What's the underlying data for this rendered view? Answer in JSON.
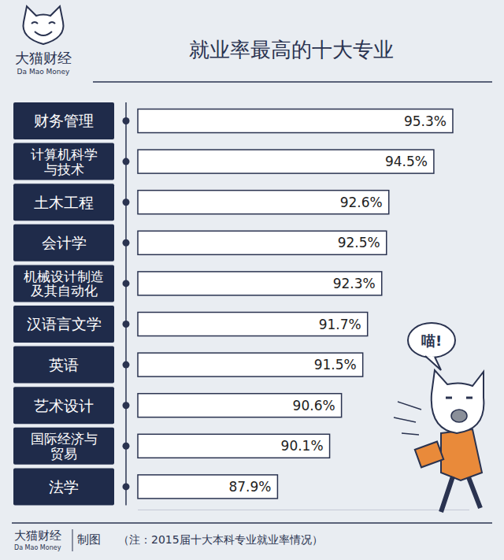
{
  "chart_data": {
    "type": "bar",
    "orientation": "horizontal",
    "title": "就业率最高的十大专业",
    "categories": [
      "财务管理",
      "计算机科学\n与技术",
      "土木工程",
      "会计学",
      "机械设计制造\n及其自动化",
      "汉语言文学",
      "英语",
      "艺术设计",
      "国际经济与\n贸易",
      "法学"
    ],
    "values": [
      95.3,
      94.5,
      92.6,
      92.5,
      92.3,
      91.7,
      91.5,
      90.6,
      90.1,
      87.9
    ],
    "value_labels": [
      "95.3%",
      "94.5%",
      "92.6%",
      "92.5%",
      "92.3%",
      "91.7%",
      "91.5%",
      "90.6%",
      "90.1%",
      "87.9%"
    ],
    "data_labels": true,
    "tick_labels": "y",
    "color": "#ffffff",
    "xlim": [
      82,
      96
    ],
    "annotations": [
      "喵!"
    ]
  },
  "branding": {
    "name": "大猫财经",
    "name_en": "Da Mao Money"
  },
  "footer": {
    "credit": "制图",
    "note": "（注：2015届十大本科专业就业率情况）"
  }
}
